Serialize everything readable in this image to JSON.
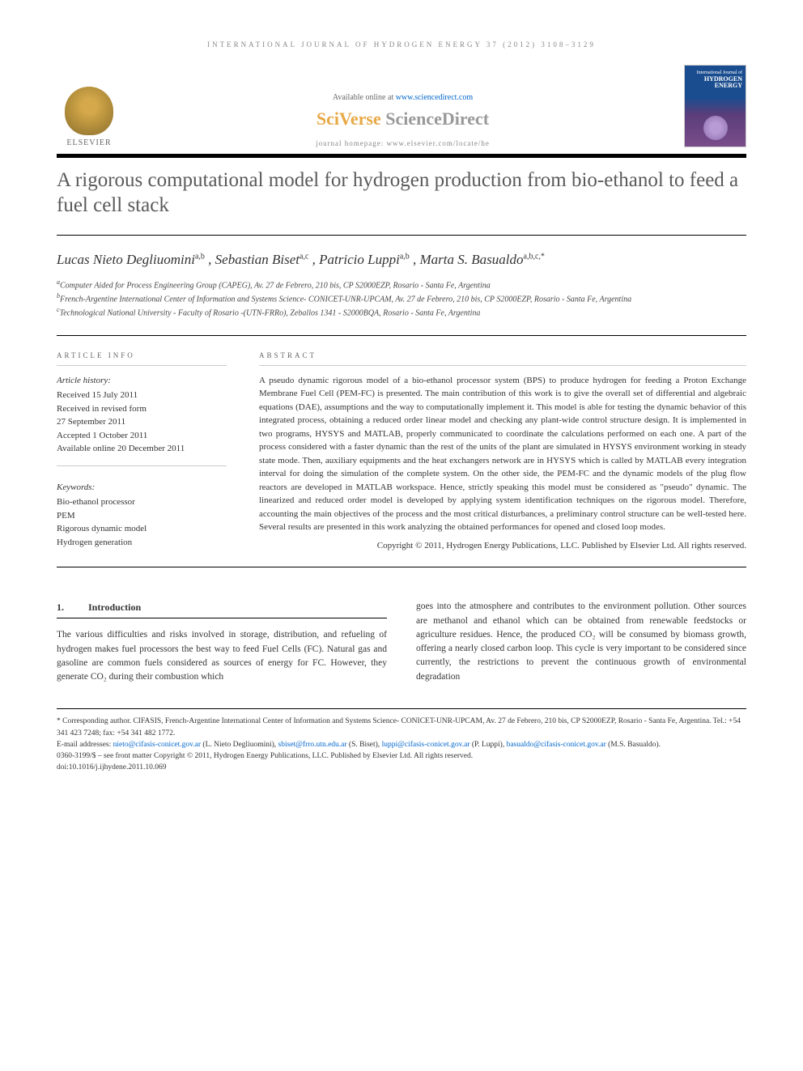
{
  "journal_header": "INTERNATIONAL JOURNAL OF HYDROGEN ENERGY 37 (2012) 3108–3129",
  "available_prefix": "Available online at ",
  "available_url": "www.sciencedirect.com",
  "sciverse_orange": "SciVerse ",
  "sciverse_gray": "ScienceDirect",
  "homepage": "journal homepage: www.elsevier.com/locate/he",
  "elsevier": "ELSEVIER",
  "cover_line1": "International Journal of",
  "cover_line2": "HYDROGEN",
  "cover_line3": "ENERGY",
  "title": "A rigorous computational model for hydrogen production from bio-ethanol to feed a fuel cell stack",
  "authors_html": "Lucas Nieto Degliuomini",
  "author1": "Lucas Nieto Degliuomini",
  "author1_sup": "a,b",
  "author2": ", Sebastian Biset",
  "author2_sup": "a,c",
  "author3": ", Patricio Luppi",
  "author3_sup": "a,b",
  "author4": ", Marta S. Basualdo",
  "author4_sup": "a,b,c,*",
  "affil_a_sup": "a",
  "affil_a": "Computer Aided for Process Engineering Group (CAPEG), Av. 27 de Febrero, 210 bis, CP S2000EZP, Rosario - Santa Fe, Argentina",
  "affil_b_sup": "b",
  "affil_b": "French-Argentine International Center of Information and Systems Science- CONICET-UNR-UPCAM, Av. 27 de Febrero, 210 bis, CP S2000EZP, Rosario - Santa Fe, Argentina",
  "affil_c_sup": "c",
  "affil_c": "Technological National University - Faculty of Rosario -(UTN-FRRo), Zeballos 1341 - S2000BQA, Rosario - Santa Fe, Argentina",
  "info_label": "ARTICLE INFO",
  "abstract_label": "ABSTRACT",
  "history_label": "Article history:",
  "history": {
    "received": "Received 15 July 2011",
    "revised_label": "Received in revised form",
    "revised_date": "27 September 2011",
    "accepted": "Accepted 1 October 2011",
    "online": "Available online 20 December 2011"
  },
  "keywords_label": "Keywords:",
  "keywords": [
    "Bio-ethanol processor",
    "PEM",
    "Rigorous dynamic model",
    "Hydrogen generation"
  ],
  "abstract": "A pseudo dynamic rigorous model of a bio-ethanol processor system (BPS) to produce hydrogen for feeding a Proton Exchange Membrane Fuel Cell (PEM-FC) is presented. The main contribution of this work is to give the overall set of differential and algebraic equations (DAE), assumptions and the way to computationally implement it. This model is able for testing the dynamic behavior of this integrated process, obtaining a reduced order linear model and checking any plant-wide control structure design. It is implemented in two programs, HYSYS and MATLAB, properly communicated to coordinate the calculations performed on each one. A part of the process considered with a faster dynamic than the rest of the units of the plant are simulated in HYSYS environment working in steady state mode. Then, auxiliary equipments and the heat exchangers network are in HYSYS which is called by MATLAB every integration interval for doing the simulation of the complete system. On the other side, the PEM-FC and the dynamic models of the plug flow reactors are developed in MATLAB workspace. Hence, strictly speaking this model must be considered as \"pseudo\" dynamic. The linearized and reduced order model is developed by applying system identification techniques on the rigorous model. Therefore, accounting the main objectives of the process and the most critical disturbances, a preliminary control structure can be well-tested here. Several results are presented in this work analyzing the obtained performances for opened and closed loop modes.",
  "copyright": "Copyright © 2011, Hydrogen Energy Publications, LLC. Published by Elsevier Ltd. All rights reserved.",
  "section_num": "1.",
  "section_title": "Introduction",
  "intro_col1": "The various difficulties and risks involved in storage, distribution, and refueling of hydrogen makes fuel processors the best way to feed Fuel Cells (FC). Natural gas and gasoline are common fuels considered as sources of energy for FC. However, they generate CO₂ during their combustion which",
  "intro_col2": "goes into the atmosphere and contributes to the environment pollution. Other sources are methanol and ethanol which can be obtained from renewable feedstocks or agriculture residues. Hence, the produced CO₂ will be consumed by biomass growth, offering a nearly closed carbon loop. This cycle is very important to be considered since currently, the restrictions to prevent the continuous growth of environmental degradation",
  "footer": {
    "corr_label": "* Corresponding author.",
    "corr_text": " CIFASIS, French-Argentine International Center of Information and Systems Science- CONICET-UNR-UPCAM, Av. 27 de Febrero, 210 bis, CP S2000EZP, Rosario - Santa Fe, Argentina. Tel.: +54 341 423 7248; fax: +54 341 482 1772.",
    "email_label": "E-mail addresses: ",
    "email1": "nieto@cifasis-conicet.gov.ar",
    "name1": " (L. Nieto Degliuomini), ",
    "email2": "sbiset@frro.utn.edu.ar",
    "name2": " (S. Biset), ",
    "email3": "luppi@cifasis-conicet.gov.ar",
    "name3": " (P. Luppi), ",
    "email4": "basualdo@cifasis-conicet.gov.ar",
    "name4": " (M.S. Basualdo).",
    "issn": "0360-3199/$ – see front matter Copyright © 2011, Hydrogen Energy Publications, LLC. Published by Elsevier Ltd. All rights reserved.",
    "doi": "doi:10.1016/j.ijhydene.2011.10.069"
  },
  "colors": {
    "title_gray": "#5a5a5a",
    "link_blue": "#0066cc",
    "orange": "#e8a845",
    "border": "#000000"
  }
}
